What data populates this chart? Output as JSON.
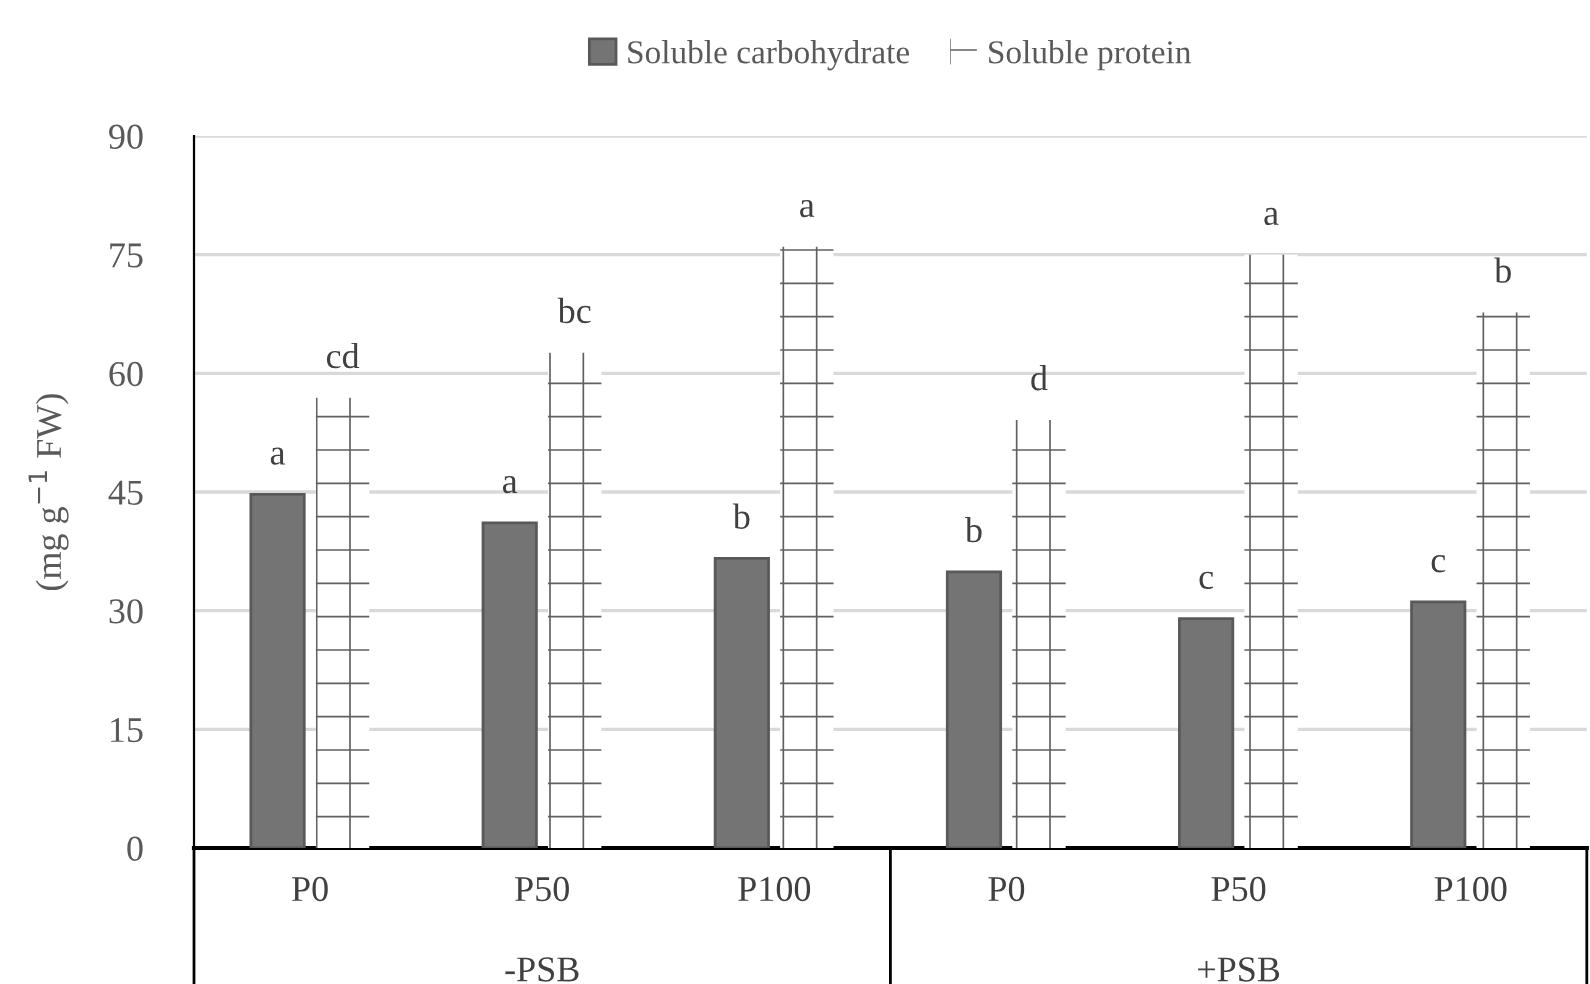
{
  "chart_data": {
    "type": "bar",
    "ylabel": "(mg g$^{−1}$ FW)",
    "categories": [
      "P0",
      "P50",
      "P100",
      "P0",
      "P50",
      "P100"
    ],
    "series": [
      {
        "name": "Soluble carbohydrate",
        "color": "#747474",
        "values": [
          44.7,
          41.1,
          36.6,
          34.9,
          29.0,
          31.1
        ],
        "value_labels": [
          "a",
          "a",
          "b",
          "b",
          "c",
          "c"
        ]
      },
      {
        "name": "Soluble protein",
        "color": "#ffffff",
        "values": [
          56.9,
          62.6,
          76.0,
          54.1,
          75.0,
          67.7
        ],
        "value_labels": [
          "cd",
          "bc",
          "a",
          "d",
          "a",
          "b"
        ]
      }
    ],
    "annotations": [
      "-PSB",
      "+PSB"
    ],
    "ylim": [
      0,
      90
    ],
    "yticks": [
      0,
      15,
      30,
      45,
      60,
      75,
      90
    ],
    "grid": "y",
    "legend": "top"
  }
}
